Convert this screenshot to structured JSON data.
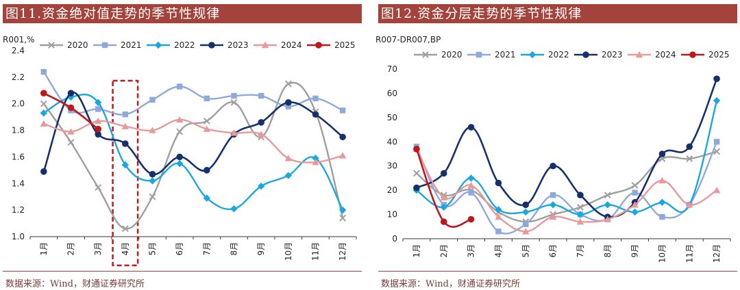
{
  "left": {
    "title": "图11.资金绝对值走势的季节性规律",
    "source": "数据来源：Wind，财通证券研究所"
  },
  "right": {
    "title": "图12.资金分层走势的季节性规律",
    "source": "数据来源：Wind，财通证券研究所"
  },
  "chart_data": [
    {
      "type": "line",
      "unit_label": "R001,%",
      "categories": [
        "1月",
        "2月",
        "3月",
        "4月",
        "5月",
        "6月",
        "7月",
        "8月",
        "9月",
        "10月",
        "11月",
        "12月"
      ],
      "ylim": [
        1.0,
        2.4
      ],
      "yticks": [
        1.0,
        1.2,
        1.4,
        1.6,
        1.8,
        2.0,
        2.2,
        2.4
      ],
      "highlight_category": "4月",
      "highlight_color": "#c0161c",
      "legend_position": "top",
      "series": [
        {
          "name": "2020",
          "color": "#9e9e9e",
          "marker": "x",
          "values": [
            2.0,
            1.71,
            1.37,
            1.06,
            1.3,
            1.79,
            1.87,
            2.01,
            1.75,
            2.15,
            1.94,
            1.14
          ]
        },
        {
          "name": "2021",
          "color": "#8fa9dc",
          "marker": "square",
          "values": [
            2.24,
            1.95,
            1.96,
            1.92,
            2.03,
            2.13,
            2.04,
            2.06,
            2.06,
            1.98,
            2.04,
            1.95
          ]
        },
        {
          "name": "2022",
          "color": "#18a7e0",
          "marker": "diamond",
          "values": [
            1.93,
            2.05,
            2.01,
            1.54,
            1.42,
            1.55,
            1.29,
            1.21,
            1.38,
            1.46,
            1.59,
            1.2
          ]
        },
        {
          "name": "2023",
          "color": "#15306b",
          "marker": "circle",
          "values": [
            1.49,
            2.08,
            1.77,
            1.7,
            1.47,
            1.6,
            1.5,
            1.77,
            1.86,
            2.01,
            1.92,
            1.75
          ]
        },
        {
          "name": "2024",
          "color": "#e8999b",
          "marker": "triangle",
          "values": [
            1.85,
            1.79,
            1.87,
            1.83,
            1.8,
            1.88,
            1.81,
            1.78,
            1.77,
            1.59,
            1.56,
            1.61
          ]
        },
        {
          "name": "2025",
          "color": "#c0161c",
          "marker": "circle",
          "values": [
            2.08,
            1.97,
            1.81,
            null,
            null,
            null,
            null,
            null,
            null,
            null,
            null,
            null
          ]
        }
      ]
    },
    {
      "type": "line",
      "unit_label": "R007-DR007,BP",
      "categories": [
        "1月",
        "2月",
        "3月",
        "4月",
        "5月",
        "6月",
        "7月",
        "8月",
        "9月",
        "10月",
        "11月",
        "12月"
      ],
      "ylim": [
        0,
        70
      ],
      "yticks": [
        0,
        10,
        20,
        30,
        40,
        50,
        60,
        70
      ],
      "legend_position": "top",
      "series": [
        {
          "name": "2020",
          "color": "#9e9e9e",
          "marker": "x",
          "values": [
            27,
            18,
            20,
            11,
            7,
            10,
            13,
            18,
            22,
            33,
            33,
            36
          ]
        },
        {
          "name": "2021",
          "color": "#8fa9dc",
          "marker": "square",
          "values": [
            38,
            14,
            19,
            3,
            6,
            18,
            10,
            8,
            19,
            9,
            14,
            40
          ]
        },
        {
          "name": "2022",
          "color": "#18a7e0",
          "marker": "diamond",
          "values": [
            20,
            13,
            25,
            12,
            11,
            14,
            10,
            14,
            11,
            15,
            14,
            57
          ]
        },
        {
          "name": "2023",
          "color": "#15306b",
          "marker": "circle",
          "values": [
            21,
            27,
            46,
            23,
            14,
            30,
            18,
            9,
            15,
            35,
            38,
            66
          ]
        },
        {
          "name": "2024",
          "color": "#e8999b",
          "marker": "triangle",
          "values": [
            37,
            17,
            22,
            9,
            3,
            9,
            7,
            8,
            14,
            24,
            14,
            20
          ]
        },
        {
          "name": "2025",
          "color": "#c0161c",
          "marker": "circle",
          "values": [
            37,
            7,
            8,
            null,
            null,
            null,
            null,
            null,
            null,
            null,
            null,
            null
          ]
        }
      ]
    }
  ]
}
